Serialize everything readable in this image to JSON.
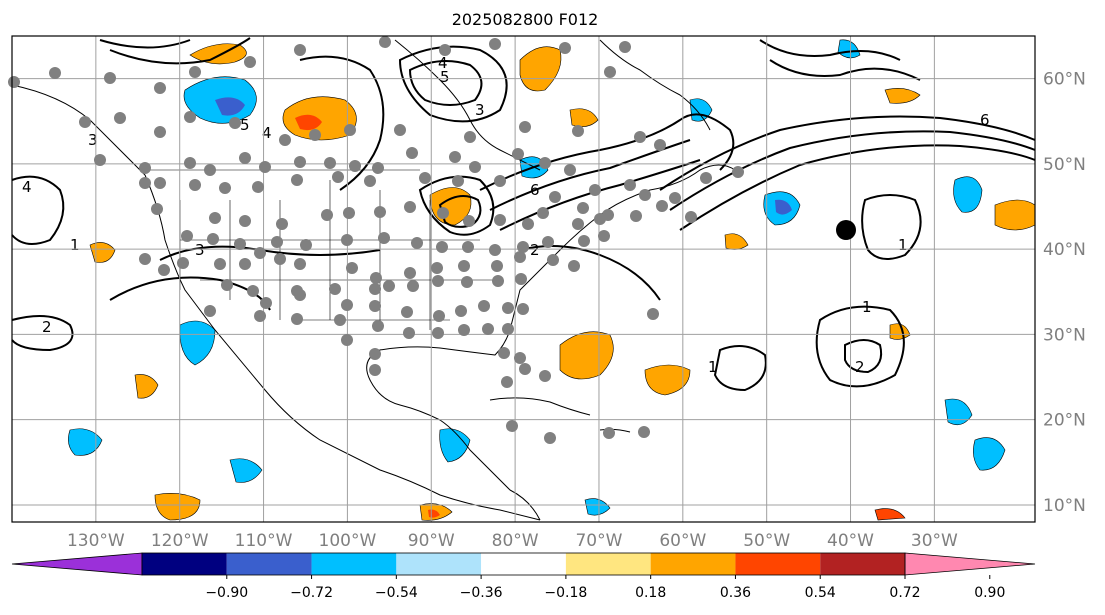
{
  "title": "2025082800 F012",
  "map": {
    "lon_range": [
      -140,
      -18
    ],
    "lat_range": [
      8,
      65
    ],
    "grid_lons": [
      -130,
      -120,
      -110,
      -100,
      -90,
      -80,
      -70,
      -60,
      -50,
      -40,
      -30
    ],
    "grid_lats": [
      10,
      20,
      30,
      40,
      50,
      60
    ],
    "lon_labels": [
      "130°W",
      "120°W",
      "110°W",
      "100°W",
      "90°W",
      "80°W",
      "70°W",
      "60°W",
      "50°W",
      "40°W",
      "30°W"
    ],
    "lat_labels": [
      "10°N",
      "20°N",
      "30°N",
      "40°N",
      "50°N",
      "60°N"
    ],
    "contour_labels": [
      "1",
      "1",
      "1",
      "1",
      "2",
      "2",
      "2",
      "3",
      "3",
      "3",
      "4",
      "4",
      "4",
      "5",
      "5",
      "6",
      "6"
    ],
    "station_marker_color": "#808080",
    "highlight_marker_color": "#000000"
  },
  "colorbar": {
    "ticks": [
      "−0.90",
      "−0.72",
      "−0.54",
      "−0.36",
      "−0.18",
      "0.18",
      "0.36",
      "0.54",
      "0.72",
      "0.90"
    ],
    "colors": [
      "#9b30d9",
      "#000080",
      "#3a5fcd",
      "#00bfff",
      "#aee3fb",
      "#ffffff",
      "#ffe680",
      "#ffa500",
      "#ff4500",
      "#b22222",
      "#ff88b0"
    ]
  }
}
